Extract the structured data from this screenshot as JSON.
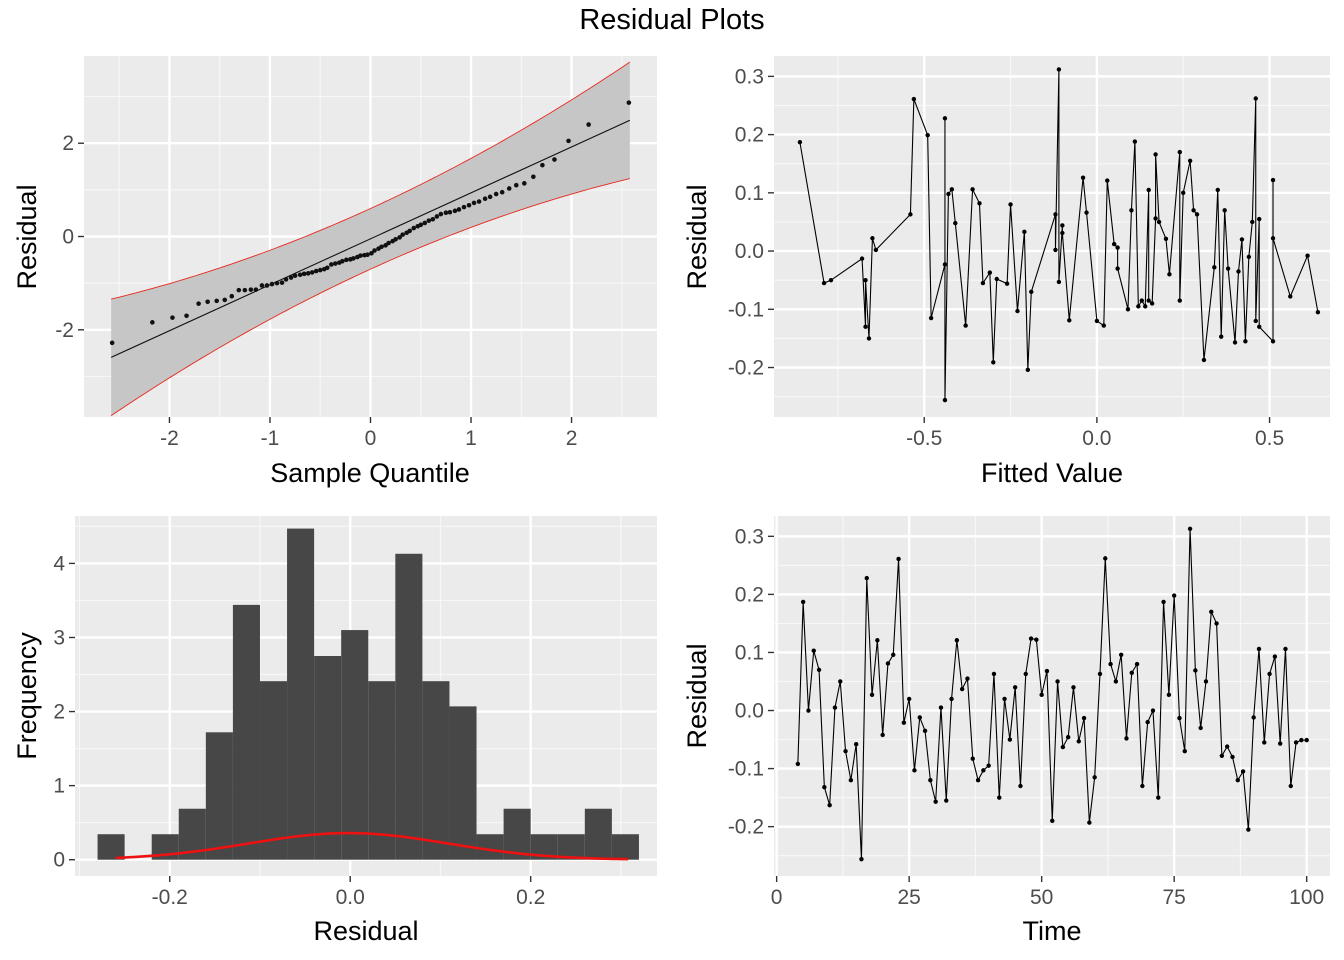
{
  "title": "Residual Plots",
  "chart_data": [
    {
      "type": "scatter",
      "panel": "qq",
      "xlabel": "Sample Quantile",
      "ylabel": "Residual",
      "xlim": [
        -2.85,
        2.85
      ],
      "ylim": [
        -3.87,
        3.87
      ],
      "xticks": [
        -2,
        -1,
        0,
        1,
        2
      ],
      "xtick_labels": [
        "-2",
        "-1",
        "0",
        "1",
        "2"
      ],
      "yticks": [
        -2,
        0,
        2
      ],
      "ytick_labels": [
        "-2",
        "0",
        "2"
      ],
      "ref_line": {
        "intercept": -0.05,
        "slope": 0.985
      },
      "band_color": "#e8281e",
      "points": [
        [
          -2.57,
          -2.28
        ],
        [
          -2.17,
          -1.84
        ],
        [
          -1.97,
          -1.74
        ],
        [
          -1.83,
          -1.7
        ],
        [
          -1.71,
          -1.44
        ],
        [
          -1.62,
          -1.4
        ],
        [
          -1.53,
          -1.38
        ],
        [
          -1.45,
          -1.36
        ],
        [
          -1.38,
          -1.28
        ],
        [
          -1.31,
          -1.15
        ],
        [
          -1.25,
          -1.15
        ],
        [
          -1.19,
          -1.14
        ],
        [
          -1.14,
          -1.14
        ],
        [
          -1.08,
          -1.05
        ],
        [
          -1.03,
          -1.05
        ],
        [
          -0.98,
          -1.02
        ],
        [
          -0.93,
          -1.0
        ],
        [
          -0.88,
          -0.99
        ],
        [
          -0.84,
          -0.92
        ],
        [
          -0.79,
          -0.88
        ],
        [
          -0.75,
          -0.84
        ],
        [
          -0.7,
          -0.82
        ],
        [
          -0.66,
          -0.8
        ],
        [
          -0.62,
          -0.79
        ],
        [
          -0.58,
          -0.77
        ],
        [
          -0.54,
          -0.74
        ],
        [
          -0.5,
          -0.72
        ],
        [
          -0.46,
          -0.7
        ],
        [
          -0.43,
          -0.67
        ],
        [
          -0.39,
          -0.6
        ],
        [
          -0.35,
          -0.58
        ],
        [
          -0.31,
          -0.56
        ],
        [
          -0.28,
          -0.53
        ],
        [
          -0.24,
          -0.5
        ],
        [
          -0.2,
          -0.49
        ],
        [
          -0.17,
          -0.47
        ],
        [
          -0.13,
          -0.44
        ],
        [
          -0.1,
          -0.41
        ],
        [
          -0.06,
          -0.4
        ],
        [
          -0.03,
          -0.39
        ],
        [
          0.01,
          -0.36
        ],
        [
          0.04,
          -0.3
        ],
        [
          0.08,
          -0.26
        ],
        [
          0.11,
          -0.22
        ],
        [
          0.15,
          -0.19
        ],
        [
          0.18,
          -0.14
        ],
        [
          0.22,
          -0.1
        ],
        [
          0.25,
          -0.06
        ],
        [
          0.29,
          -0.02
        ],
        [
          0.32,
          0.04
        ],
        [
          0.36,
          0.08
        ],
        [
          0.39,
          0.12
        ],
        [
          0.43,
          0.18
        ],
        [
          0.47,
          0.22
        ],
        [
          0.5,
          0.25
        ],
        [
          0.54,
          0.29
        ],
        [
          0.58,
          0.34
        ],
        [
          0.62,
          0.37
        ],
        [
          0.66,
          0.43
        ],
        [
          0.7,
          0.48
        ],
        [
          0.75,
          0.51
        ],
        [
          0.79,
          0.52
        ],
        [
          0.84,
          0.55
        ],
        [
          0.88,
          0.58
        ],
        [
          0.93,
          0.63
        ],
        [
          0.98,
          0.67
        ],
        [
          1.03,
          0.72
        ],
        [
          1.08,
          0.75
        ],
        [
          1.14,
          0.81
        ],
        [
          1.19,
          0.85
        ],
        [
          1.25,
          0.91
        ],
        [
          1.31,
          0.95
        ],
        [
          1.38,
          1.03
        ],
        [
          1.45,
          1.1
        ],
        [
          1.53,
          1.14
        ],
        [
          1.62,
          1.28
        ],
        [
          1.71,
          1.53
        ],
        [
          1.83,
          1.65
        ],
        [
          1.97,
          2.05
        ],
        [
          2.17,
          2.4
        ],
        [
          2.57,
          2.87
        ]
      ]
    },
    {
      "type": "line",
      "panel": "residual-vs-fitted",
      "xlabel": "Fitted Value",
      "ylabel": "Residual",
      "xlim": [
        -0.935,
        0.675
      ],
      "ylim": [
        -0.285,
        0.335
      ],
      "xticks": [
        -0.5,
        0.0,
        0.5
      ],
      "xtick_labels": [
        "-0.5",
        "0.0",
        "0.5"
      ],
      "yticks": [
        -0.2,
        -0.1,
        0.0,
        0.1,
        0.2,
        0.3
      ],
      "ytick_labels": [
        "-0.2",
        "-0.1",
        "0.0",
        "0.1",
        "0.2",
        "0.3"
      ],
      "points": [
        [
          -0.86,
          0.187
        ],
        [
          -0.79,
          -0.055
        ],
        [
          -0.77,
          -0.05
        ],
        [
          -0.68,
          -0.013
        ],
        [
          -0.67,
          -0.13
        ],
        [
          -0.67,
          -0.05
        ],
        [
          -0.66,
          -0.15
        ],
        [
          -0.65,
          0.022
        ],
        [
          -0.64,
          0.002
        ],
        [
          -0.54,
          0.063
        ],
        [
          -0.53,
          0.261
        ],
        [
          -0.49,
          0.199
        ],
        [
          -0.48,
          -0.115
        ],
        [
          -0.44,
          -0.023
        ],
        [
          -0.44,
          0.228
        ],
        [
          -0.44,
          -0.256
        ],
        [
          -0.43,
          0.098
        ],
        [
          -0.42,
          0.106
        ],
        [
          -0.41,
          0.048
        ],
        [
          -0.38,
          -0.128
        ],
        [
          -0.36,
          0.106
        ],
        [
          -0.34,
          0.082
        ],
        [
          -0.33,
          -0.055
        ],
        [
          -0.31,
          -0.037
        ],
        [
          -0.3,
          -0.191
        ],
        [
          -0.29,
          -0.048
        ],
        [
          -0.26,
          -0.056
        ],
        [
          -0.25,
          0.08
        ],
        [
          -0.23,
          -0.103
        ],
        [
          -0.21,
          0.033
        ],
        [
          -0.2,
          -0.204
        ],
        [
          -0.19,
          -0.07
        ],
        [
          -0.12,
          0.063
        ],
        [
          -0.12,
          0.002
        ],
        [
          -0.11,
          0.312
        ],
        [
          -0.11,
          -0.053
        ],
        [
          -0.1,
          0.044
        ],
        [
          -0.1,
          0.031
        ],
        [
          -0.08,
          -0.119
        ],
        [
          -0.04,
          0.126
        ],
        [
          -0.03,
          0.066
        ],
        [
          0.0,
          -0.12
        ],
        [
          0.02,
          -0.128
        ],
        [
          0.03,
          0.121
        ],
        [
          0.05,
          0.012
        ],
        [
          0.06,
          0.006
        ],
        [
          0.06,
          -0.03
        ],
        [
          0.09,
          -0.1
        ],
        [
          0.1,
          0.07
        ],
        [
          0.11,
          0.188
        ],
        [
          0.12,
          -0.095
        ],
        [
          0.13,
          -0.085
        ],
        [
          0.14,
          -0.095
        ],
        [
          0.15,
          0.105
        ],
        [
          0.15,
          -0.085
        ],
        [
          0.16,
          -0.09
        ],
        [
          0.17,
          0.056
        ],
        [
          0.17,
          0.166
        ],
        [
          0.18,
          0.05
        ],
        [
          0.2,
          0.021
        ],
        [
          0.21,
          -0.04
        ],
        [
          0.24,
          0.17
        ],
        [
          0.24,
          -0.085
        ],
        [
          0.25,
          0.1
        ],
        [
          0.27,
          0.155
        ],
        [
          0.28,
          0.07
        ],
        [
          0.29,
          0.063
        ],
        [
          0.31,
          -0.187
        ],
        [
          0.34,
          -0.028
        ],
        [
          0.35,
          0.105
        ],
        [
          0.36,
          -0.147
        ],
        [
          0.37,
          0.07
        ],
        [
          0.38,
          -0.03
        ],
        [
          0.4,
          -0.157
        ],
        [
          0.41,
          -0.035
        ],
        [
          0.42,
          0.02
        ],
        [
          0.43,
          -0.155
        ],
        [
          0.44,
          -0.01
        ],
        [
          0.45,
          0.05
        ],
        [
          0.46,
          0.262
        ],
        [
          0.46,
          -0.12
        ],
        [
          0.47,
          0.055
        ],
        [
          0.47,
          -0.13
        ],
        [
          0.51,
          -0.155
        ],
        [
          0.51,
          0.122
        ],
        [
          0.51,
          0.022
        ],
        [
          0.56,
          -0.078
        ],
        [
          0.61,
          -0.008
        ],
        [
          0.64,
          -0.105
        ]
      ]
    },
    {
      "type": "bar",
      "panel": "histogram",
      "xlabel": "Residual",
      "ylabel": "Frequency",
      "xlim": [
        -0.305,
        0.34
      ],
      "ylim": [
        -0.22,
        4.64
      ],
      "xticks": [
        -0.2,
        0.0,
        0.2
      ],
      "xtick_labels": [
        "-0.2",
        "0.0",
        "0.2"
      ],
      "yticks": [
        0,
        1,
        2,
        3,
        4
      ],
      "ytick_labels": [
        "0",
        "1",
        "2",
        "3",
        "4"
      ],
      "bins": [
        [
          -0.28,
          -0.25,
          0.344
        ],
        [
          -0.22,
          -0.19,
          0.344
        ],
        [
          -0.19,
          -0.16,
          0.688
        ],
        [
          -0.16,
          -0.13,
          1.72
        ],
        [
          -0.13,
          -0.1,
          3.44
        ],
        [
          -0.1,
          -0.07,
          2.41
        ],
        [
          -0.07,
          -0.04,
          4.47
        ],
        [
          -0.04,
          -0.01,
          2.75
        ],
        [
          -0.01,
          0.02,
          3.1
        ],
        [
          0.02,
          0.05,
          2.41
        ],
        [
          0.05,
          0.08,
          4.13
        ],
        [
          0.08,
          0.11,
          2.41
        ],
        [
          0.11,
          0.14,
          2.07
        ],
        [
          0.14,
          0.17,
          0.344
        ],
        [
          0.17,
          0.2,
          0.688
        ],
        [
          0.2,
          0.23,
          0.344
        ],
        [
          0.23,
          0.26,
          0.344
        ],
        [
          0.26,
          0.29,
          0.688
        ],
        [
          0.29,
          0.32,
          0.344
        ]
      ],
      "density": {
        "mean": -0.002,
        "sd": 0.111,
        "color": "#ee1111"
      }
    },
    {
      "type": "line",
      "panel": "residual-vs-time",
      "xlabel": "Time",
      "ylabel": "Residual",
      "xlim": [
        -0.5,
        104.4
      ],
      "ylim": [
        -0.285,
        0.335
      ],
      "xticks": [
        0,
        25,
        50,
        75,
        100
      ],
      "xtick_labels": [
        "0",
        "25",
        "50",
        "75",
        "100"
      ],
      "yticks": [
        -0.2,
        -0.1,
        0.0,
        0.1,
        0.2,
        0.3
      ],
      "ytick_labels": [
        "-0.2",
        "-0.1",
        "0.0",
        "0.1",
        "0.2",
        "0.3"
      ],
      "points": [
        [
          4,
          -0.092
        ],
        [
          5,
          0.187
        ],
        [
          6,
          0.0
        ],
        [
          7,
          0.103
        ],
        [
          8,
          0.07
        ],
        [
          9,
          -0.132
        ],
        [
          10,
          -0.163
        ],
        [
          11,
          0.005
        ],
        [
          12,
          0.05
        ],
        [
          13,
          -0.07
        ],
        [
          14,
          -0.12
        ],
        [
          15,
          -0.058
        ],
        [
          16,
          -0.256
        ],
        [
          17,
          0.228
        ],
        [
          18,
          0.027
        ],
        [
          19,
          0.121
        ],
        [
          20,
          -0.042
        ],
        [
          21,
          0.081
        ],
        [
          22,
          0.096
        ],
        [
          23,
          0.261
        ],
        [
          24,
          -0.021
        ],
        [
          25,
          0.02
        ],
        [
          26,
          -0.103
        ],
        [
          27,
          -0.012
        ],
        [
          28,
          -0.035
        ],
        [
          29,
          -0.12
        ],
        [
          30,
          -0.157
        ],
        [
          31,
          0.005
        ],
        [
          32,
          -0.155
        ],
        [
          33,
          0.02
        ],
        [
          34,
          0.121
        ],
        [
          35,
          0.037
        ],
        [
          36,
          0.055
        ],
        [
          37,
          -0.083
        ],
        [
          38,
          -0.12
        ],
        [
          39,
          -0.103
        ],
        [
          40,
          -0.095
        ],
        [
          41,
          0.063
        ],
        [
          42,
          -0.15
        ],
        [
          43,
          0.02
        ],
        [
          44,
          -0.05
        ],
        [
          45,
          0.04
        ],
        [
          46,
          -0.13
        ],
        [
          47,
          0.063
        ],
        [
          48,
          0.124
        ],
        [
          49,
          0.122
        ],
        [
          50,
          0.027
        ],
        [
          51,
          0.068
        ],
        [
          52,
          -0.19
        ],
        [
          53,
          0.05
        ],
        [
          54,
          -0.063
        ],
        [
          55,
          -0.046
        ],
        [
          56,
          0.04
        ],
        [
          57,
          -0.053
        ],
        [
          58,
          -0.013
        ],
        [
          59,
          -0.193
        ],
        [
          60,
          -0.115
        ],
        [
          61,
          0.063
        ],
        [
          62,
          0.262
        ],
        [
          63,
          0.08
        ],
        [
          64,
          0.05
        ],
        [
          65,
          0.096
        ],
        [
          66,
          -0.048
        ],
        [
          67,
          0.065
        ],
        [
          68,
          0.08
        ],
        [
          69,
          -0.13
        ],
        [
          70,
          -0.02
        ],
        [
          71,
          0.0
        ],
        [
          72,
          -0.15
        ],
        [
          73,
          0.187
        ],
        [
          74,
          0.027
        ],
        [
          75,
          0.198
        ],
        [
          76,
          -0.013
        ],
        [
          77,
          -0.07
        ],
        [
          78,
          0.313
        ],
        [
          79,
          0.069
        ],
        [
          80,
          -0.03
        ],
        [
          81,
          0.05
        ],
        [
          82,
          0.17
        ],
        [
          83,
          0.15
        ],
        [
          84,
          -0.078
        ],
        [
          85,
          -0.062
        ],
        [
          86,
          -0.08
        ],
        [
          87,
          -0.12
        ],
        [
          88,
          -0.105
        ],
        [
          89,
          -0.205
        ],
        [
          90,
          -0.012
        ],
        [
          91,
          0.106
        ],
        [
          92,
          -0.055
        ],
        [
          93,
          0.063
        ],
        [
          94,
          0.093
        ],
        [
          95,
          -0.057
        ],
        [
          96,
          0.106
        ],
        [
          97,
          -0.13
        ],
        [
          98,
          -0.055
        ],
        [
          99,
          -0.051
        ],
        [
          100,
          -0.051
        ]
      ]
    }
  ]
}
